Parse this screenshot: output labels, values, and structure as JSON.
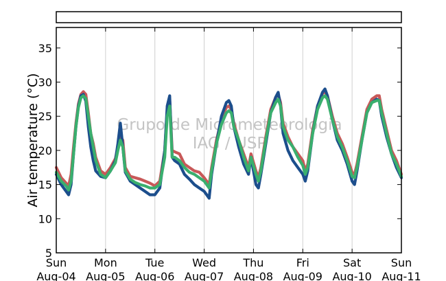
{
  "chart_data": {
    "type": "line",
    "ylabel": "Air temperature (°C)",
    "xlabel": "",
    "ylim": [
      5,
      38
    ],
    "yticks": [
      5,
      10,
      15,
      20,
      25,
      30,
      35
    ],
    "x_domain_days": [
      0,
      7
    ],
    "x_ticks": [
      {
        "day": "Sun",
        "date": "Aug-04"
      },
      {
        "day": "Mon",
        "date": "Aug-05"
      },
      {
        "day": "Tue",
        "date": "Aug-06"
      },
      {
        "day": "Wed",
        "date": "Aug-07"
      },
      {
        "day": "Thu",
        "date": "Aug-08"
      },
      {
        "day": "Fri",
        "date": "Aug-09"
      },
      {
        "day": "Sat",
        "date": "Aug-10"
      },
      {
        "day": "Sun",
        "date": "Aug-11"
      }
    ],
    "grid": "vertical",
    "legend_box": "empty, top",
    "watermark": [
      "Grupo de Micrometeorologia",
      "IAG / USP"
    ],
    "series": [
      {
        "color": "#c85858",
        "values": [
          [
            0.0,
            17.5
          ],
          [
            0.1,
            16.0
          ],
          [
            0.2,
            15.2
          ],
          [
            0.25,
            14.8
          ],
          [
            0.3,
            16.5
          ],
          [
            0.35,
            20.5
          ],
          [
            0.4,
            24.0
          ],
          [
            0.45,
            26.8
          ],
          [
            0.5,
            28.2
          ],
          [
            0.55,
            28.6
          ],
          [
            0.6,
            28.2
          ],
          [
            0.65,
            25.5
          ],
          [
            0.7,
            22.5
          ],
          [
            0.75,
            21.0
          ],
          [
            0.8,
            19.0
          ],
          [
            0.9,
            17.0
          ],
          [
            1.0,
            16.5
          ],
          [
            1.1,
            17.5
          ],
          [
            1.2,
            18.8
          ],
          [
            1.25,
            20.5
          ],
          [
            1.3,
            22.0
          ],
          [
            1.35,
            21.5
          ],
          [
            1.4,
            17.5
          ],
          [
            1.5,
            16.2
          ],
          [
            1.6,
            16.0
          ],
          [
            1.7,
            15.8
          ],
          [
            1.8,
            15.5
          ],
          [
            1.9,
            15.2
          ],
          [
            2.0,
            14.8
          ],
          [
            2.1,
            15.5
          ],
          [
            2.2,
            20.0
          ],
          [
            2.25,
            26.0
          ],
          [
            2.3,
            27.5
          ],
          [
            2.35,
            20.0
          ],
          [
            2.4,
            19.8
          ],
          [
            2.5,
            19.5
          ],
          [
            2.6,
            18.0
          ],
          [
            2.7,
            17.5
          ],
          [
            2.8,
            17.0
          ],
          [
            2.9,
            16.8
          ],
          [
            3.0,
            16.0
          ],
          [
            3.1,
            15.0
          ],
          [
            3.15,
            17.5
          ],
          [
            3.25,
            21.5
          ],
          [
            3.35,
            24.5
          ],
          [
            3.45,
            26.3
          ],
          [
            3.5,
            26.5
          ],
          [
            3.55,
            26.0
          ],
          [
            3.6,
            24.0
          ],
          [
            3.7,
            21.5
          ],
          [
            3.8,
            19.5
          ],
          [
            3.9,
            17.5
          ],
          [
            3.95,
            19.5
          ],
          [
            4.05,
            17.0
          ],
          [
            4.1,
            16.0
          ],
          [
            4.15,
            17.5
          ],
          [
            4.25,
            22.0
          ],
          [
            4.35,
            26.0
          ],
          [
            4.45,
            27.8
          ],
          [
            4.5,
            28.2
          ],
          [
            4.55,
            27.0
          ],
          [
            4.6,
            24.0
          ],
          [
            4.7,
            22.0
          ],
          [
            4.8,
            20.5
          ],
          [
            4.9,
            19.5
          ],
          [
            5.0,
            18.5
          ],
          [
            5.05,
            17.0
          ],
          [
            5.1,
            18.0
          ],
          [
            5.2,
            23.0
          ],
          [
            5.3,
            26.5
          ],
          [
            5.4,
            28.3
          ],
          [
            5.45,
            28.6
          ],
          [
            5.5,
            28.0
          ],
          [
            5.6,
            25.0
          ],
          [
            5.7,
            22.5
          ],
          [
            5.8,
            21.0
          ],
          [
            5.9,
            19.0
          ],
          [
            6.0,
            16.8
          ],
          [
            6.05,
            16.5
          ],
          [
            6.1,
            18.0
          ],
          [
            6.2,
            22.0
          ],
          [
            6.3,
            26.0
          ],
          [
            6.4,
            27.5
          ],
          [
            6.5,
            28.0
          ],
          [
            6.55,
            28.0
          ],
          [
            6.6,
            26.0
          ],
          [
            6.7,
            23.0
          ],
          [
            6.8,
            20.0
          ],
          [
            6.9,
            18.5
          ],
          [
            7.0,
            16.5
          ]
        ]
      },
      {
        "color": "#1c4e8c",
        "values": [
          [
            0.0,
            16.5
          ],
          [
            0.1,
            15.0
          ],
          [
            0.2,
            14.0
          ],
          [
            0.25,
            13.5
          ],
          [
            0.3,
            15.0
          ],
          [
            0.35,
            19.5
          ],
          [
            0.4,
            23.5
          ],
          [
            0.45,
            26.5
          ],
          [
            0.5,
            28.0
          ],
          [
            0.55,
            28.2
          ],
          [
            0.6,
            27.2
          ],
          [
            0.65,
            23.5
          ],
          [
            0.7,
            20.5
          ],
          [
            0.75,
            18.5
          ],
          [
            0.8,
            17.0
          ],
          [
            0.9,
            16.2
          ],
          [
            1.0,
            16.0
          ],
          [
            1.1,
            17.0
          ],
          [
            1.2,
            18.5
          ],
          [
            1.25,
            21.0
          ],
          [
            1.3,
            24.0
          ],
          [
            1.35,
            20.5
          ],
          [
            1.4,
            16.8
          ],
          [
            1.5,
            15.5
          ],
          [
            1.6,
            15.0
          ],
          [
            1.7,
            14.5
          ],
          [
            1.8,
            14.0
          ],
          [
            1.9,
            13.5
          ],
          [
            2.0,
            13.5
          ],
          [
            2.1,
            14.5
          ],
          [
            2.2,
            20.0
          ],
          [
            2.25,
            26.5
          ],
          [
            2.3,
            28.0
          ],
          [
            2.35,
            19.0
          ],
          [
            2.4,
            18.5
          ],
          [
            2.5,
            18.0
          ],
          [
            2.6,
            16.5
          ],
          [
            2.7,
            15.8
          ],
          [
            2.8,
            15.0
          ],
          [
            2.9,
            14.5
          ],
          [
            3.0,
            14.0
          ],
          [
            3.1,
            13.0
          ],
          [
            3.15,
            16.5
          ],
          [
            3.25,
            21.0
          ],
          [
            3.35,
            25.0
          ],
          [
            3.45,
            27.0
          ],
          [
            3.5,
            27.3
          ],
          [
            3.55,
            26.5
          ],
          [
            3.6,
            23.5
          ],
          [
            3.7,
            20.5
          ],
          [
            3.8,
            18.0
          ],
          [
            3.9,
            16.5
          ],
          [
            3.95,
            19.0
          ],
          [
            4.05,
            15.0
          ],
          [
            4.1,
            14.5
          ],
          [
            4.15,
            16.5
          ],
          [
            4.25,
            21.0
          ],
          [
            4.35,
            25.5
          ],
          [
            4.45,
            27.8
          ],
          [
            4.5,
            28.5
          ],
          [
            4.55,
            26.5
          ],
          [
            4.6,
            22.5
          ],
          [
            4.7,
            20.0
          ],
          [
            4.8,
            18.5
          ],
          [
            4.9,
            17.5
          ],
          [
            5.0,
            16.5
          ],
          [
            5.05,
            15.5
          ],
          [
            5.1,
            17.0
          ],
          [
            5.2,
            22.5
          ],
          [
            5.3,
            26.5
          ],
          [
            5.4,
            28.5
          ],
          [
            5.45,
            29.0
          ],
          [
            5.5,
            28.0
          ],
          [
            5.6,
            24.5
          ],
          [
            5.7,
            21.5
          ],
          [
            5.8,
            20.0
          ],
          [
            5.9,
            18.0
          ],
          [
            6.0,
            15.5
          ],
          [
            6.05,
            15.0
          ],
          [
            6.1,
            17.0
          ],
          [
            6.2,
            21.5
          ],
          [
            6.3,
            25.5
          ],
          [
            6.4,
            27.0
          ],
          [
            6.5,
            27.5
          ],
          [
            6.55,
            27.3
          ],
          [
            6.6,
            25.0
          ],
          [
            6.7,
            22.0
          ],
          [
            6.8,
            19.5
          ],
          [
            6.9,
            17.5
          ],
          [
            7.0,
            16.0
          ]
        ]
      },
      {
        "color": "#3aaf6e",
        "values": [
          [
            0.0,
            16.8
          ],
          [
            0.1,
            15.5
          ],
          [
            0.2,
            14.8
          ],
          [
            0.25,
            14.2
          ],
          [
            0.3,
            15.5
          ],
          [
            0.35,
            19.5
          ],
          [
            0.4,
            23.5
          ],
          [
            0.45,
            26.3
          ],
          [
            0.5,
            27.7
          ],
          [
            0.55,
            28.0
          ],
          [
            0.6,
            27.6
          ],
          [
            0.65,
            25.0
          ],
          [
            0.7,
            22.5
          ],
          [
            0.75,
            20.5
          ],
          [
            0.8,
            18.5
          ],
          [
            0.9,
            16.5
          ],
          [
            1.0,
            16.0
          ],
          [
            1.1,
            17.0
          ],
          [
            1.2,
            18.2
          ],
          [
            1.25,
            20.0
          ],
          [
            1.3,
            21.5
          ],
          [
            1.35,
            20.5
          ],
          [
            1.4,
            17.0
          ],
          [
            1.5,
            15.8
          ],
          [
            1.6,
            15.3
          ],
          [
            1.7,
            15.0
          ],
          [
            1.8,
            14.8
          ],
          [
            1.9,
            14.5
          ],
          [
            2.0,
            14.5
          ],
          [
            2.1,
            15.0
          ],
          [
            2.2,
            19.0
          ],
          [
            2.25,
            25.0
          ],
          [
            2.3,
            26.5
          ],
          [
            2.35,
            19.0
          ],
          [
            2.4,
            19.0
          ],
          [
            2.5,
            18.5
          ],
          [
            2.6,
            17.5
          ],
          [
            2.7,
            16.8
          ],
          [
            2.8,
            16.5
          ],
          [
            2.9,
            16.0
          ],
          [
            3.0,
            15.5
          ],
          [
            3.1,
            14.5
          ],
          [
            3.15,
            17.0
          ],
          [
            3.25,
            21.0
          ],
          [
            3.35,
            23.8
          ],
          [
            3.45,
            25.5
          ],
          [
            3.5,
            25.8
          ],
          [
            3.55,
            25.5
          ],
          [
            3.6,
            23.5
          ],
          [
            3.7,
            21.5
          ],
          [
            3.8,
            19.0
          ],
          [
            3.9,
            17.0
          ],
          [
            3.95,
            19.0
          ],
          [
            4.05,
            16.5
          ],
          [
            4.1,
            15.5
          ],
          [
            4.15,
            17.0
          ],
          [
            4.25,
            21.5
          ],
          [
            4.35,
            25.5
          ],
          [
            4.45,
            27.0
          ],
          [
            4.5,
            27.5
          ],
          [
            4.55,
            26.5
          ],
          [
            4.6,
            23.5
          ],
          [
            4.7,
            21.5
          ],
          [
            4.8,
            20.5
          ],
          [
            4.9,
            19.0
          ],
          [
            5.0,
            17.8
          ],
          [
            5.05,
            16.5
          ],
          [
            5.1,
            17.5
          ],
          [
            5.2,
            22.5
          ],
          [
            5.3,
            26.0
          ],
          [
            5.4,
            27.7
          ],
          [
            5.45,
            28.0
          ],
          [
            5.5,
            27.5
          ],
          [
            5.6,
            24.5
          ],
          [
            5.7,
            22.0
          ],
          [
            5.8,
            20.5
          ],
          [
            5.9,
            18.5
          ],
          [
            6.0,
            16.2
          ],
          [
            6.05,
            16.0
          ],
          [
            6.1,
            17.5
          ],
          [
            6.2,
            21.5
          ],
          [
            6.3,
            25.5
          ],
          [
            6.4,
            27.0
          ],
          [
            6.5,
            27.3
          ],
          [
            6.55,
            27.3
          ],
          [
            6.6,
            25.5
          ],
          [
            6.7,
            22.5
          ],
          [
            6.8,
            19.5
          ],
          [
            6.9,
            18.0
          ],
          [
            7.0,
            16.2
          ]
        ]
      }
    ]
  }
}
